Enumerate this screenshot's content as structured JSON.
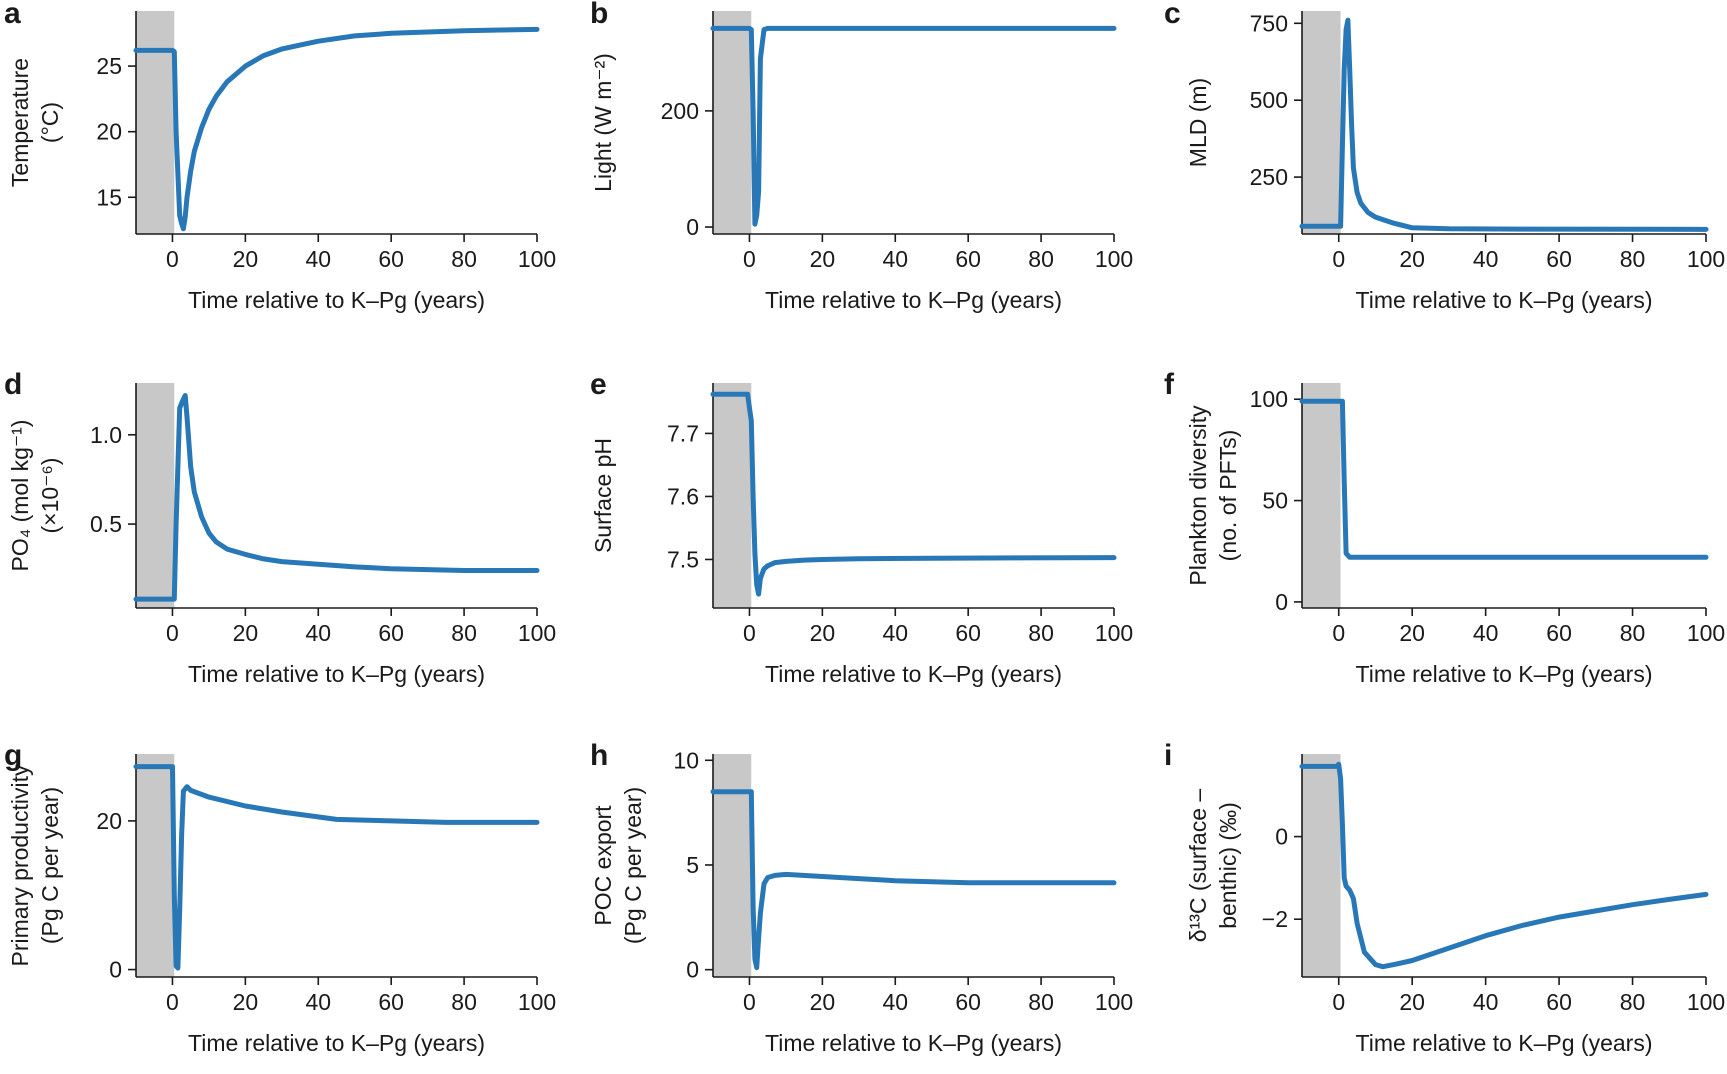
{
  "chart_data": [
    {
      "panel": "a",
      "type": "line",
      "xlabel": "Time relative to K–Pg (years)",
      "ylabel_lines": [
        "Temperature",
        "(°C)"
      ],
      "xlim": [
        -10,
        100
      ],
      "ylim": [
        12.2,
        29.2
      ],
      "xticks": [
        0,
        20,
        40,
        60,
        80,
        100
      ],
      "yticks": [
        15,
        20,
        25
      ],
      "shaded_x": [
        -10,
        0.5
      ],
      "series": [
        {
          "x": [
            -10,
            0,
            0.5,
            1,
            2,
            2.5,
            3,
            3.5,
            4,
            5,
            6,
            8,
            10,
            12,
            15,
            20,
            25,
            30,
            35,
            40,
            50,
            60,
            70,
            80,
            90,
            100
          ],
          "y": [
            26.2,
            26.2,
            26.1,
            20,
            13.6,
            13.0,
            12.6,
            13.5,
            15.0,
            17.0,
            18.5,
            20.3,
            21.7,
            22.7,
            23.8,
            25.0,
            25.8,
            26.3,
            26.6,
            26.9,
            27.3,
            27.5,
            27.6,
            27.7,
            27.75,
            27.8
          ]
        }
      ]
    },
    {
      "panel": "b",
      "type": "line",
      "xlabel": "Time relative to K–Pg (years)",
      "ylabel_lines": [
        "Light (W m⁻²)"
      ],
      "xlim": [
        -10,
        100
      ],
      "ylim": [
        -12,
        372
      ],
      "xticks": [
        0,
        20,
        40,
        60,
        80,
        100
      ],
      "yticks": [
        0,
        200
      ],
      "shaded_x": [
        -10,
        0.5
      ],
      "series": [
        {
          "x": [
            -10,
            0,
            0.5,
            1,
            1.5,
            2,
            2.5,
            3,
            4,
            5,
            100
          ],
          "y": [
            342,
            342,
            340,
            200,
            5,
            20,
            60,
            290,
            340,
            342,
            342
          ]
        }
      ]
    },
    {
      "panel": "c",
      "type": "line",
      "xlabel": "Time relative to K–Pg (years)",
      "ylabel_lines": [
        "MLD (m)"
      ],
      "xlim": [
        -10,
        100
      ],
      "ylim": [
        65,
        790
      ],
      "xticks": [
        0,
        20,
        40,
        60,
        80,
        100
      ],
      "yticks": [
        250,
        500,
        750
      ],
      "shaded_x": [
        -10,
        0.5
      ],
      "series": [
        {
          "x": [
            -10,
            0,
            0.5,
            1,
            1.5,
            2,
            2.5,
            3,
            3.5,
            4,
            5,
            6,
            8,
            10,
            15,
            20,
            30,
            50,
            100
          ],
          "y": [
            90,
            90,
            90,
            350,
            600,
            730,
            760,
            600,
            420,
            280,
            200,
            165,
            135,
            120,
            100,
            85,
            82,
            81,
            80
          ]
        }
      ]
    },
    {
      "panel": "d",
      "type": "line",
      "xlabel": "Time relative to K–Pg (years)",
      "ylabel_lines": [
        "PO₄ (mol kg⁻¹)",
        "(×10⁻⁶)"
      ],
      "xlim": [
        -10,
        100
      ],
      "ylim": [
        0.03,
        1.29
      ],
      "xticks": [
        0,
        20,
        40,
        60,
        80,
        100
      ],
      "yticks": [
        0.5,
        1.0
      ],
      "ytick_labels": [
        "0.5",
        "1.0"
      ],
      "shaded_x": [
        -10,
        0.5
      ],
      "series": [
        {
          "x": [
            -10,
            0,
            0.5,
            1,
            2,
            3,
            3.5,
            4,
            5,
            6,
            8,
            10,
            12,
            15,
            20,
            25,
            30,
            40,
            50,
            60,
            70,
            80,
            90,
            100
          ],
          "y": [
            0.08,
            0.08,
            0.08,
            0.5,
            1.15,
            1.2,
            1.22,
            1.1,
            0.82,
            0.68,
            0.54,
            0.45,
            0.4,
            0.36,
            0.33,
            0.305,
            0.29,
            0.275,
            0.26,
            0.25,
            0.245,
            0.24,
            0.24,
            0.24
          ]
        }
      ]
    },
    {
      "panel": "e",
      "type": "line",
      "xlabel": "Time relative to K–Pg (years)",
      "ylabel_lines": [
        "Surface pH"
      ],
      "xlim": [
        -10,
        100
      ],
      "ylim": [
        7.423,
        7.78
      ],
      "xticks": [
        0,
        20,
        40,
        60,
        80,
        100
      ],
      "yticks": [
        7.5,
        7.6,
        7.7
      ],
      "ytick_labels": [
        "7.5",
        "7.6",
        "7.7"
      ],
      "shaded_x": [
        -10,
        0.5
      ],
      "series": [
        {
          "x": [
            -10,
            -0.5,
            0,
            0.5,
            1,
            1.5,
            2,
            2.5,
            3,
            4,
            5,
            7,
            10,
            15,
            20,
            30,
            50,
            100
          ],
          "y": [
            7.762,
            7.762,
            7.74,
            7.72,
            7.6,
            7.51,
            7.46,
            7.445,
            7.47,
            7.485,
            7.49,
            7.495,
            7.497,
            7.499,
            7.5,
            7.501,
            7.502,
            7.503
          ]
        }
      ]
    },
    {
      "panel": "f",
      "type": "line",
      "xlabel": "Time relative to K–Pg (years)",
      "ylabel_lines": [
        "Plankton diversity",
        "(no. of PFTs)"
      ],
      "xlim": [
        -10,
        100
      ],
      "ylim": [
        -3,
        108
      ],
      "xticks": [
        0,
        20,
        40,
        60,
        80,
        100
      ],
      "yticks": [
        0,
        50,
        100
      ],
      "shaded_x": [
        -10,
        0.5
      ],
      "series": [
        {
          "x": [
            -10,
            1,
            1.5,
            2,
            2.5,
            3,
            100
          ],
          "y": [
            99,
            99,
            60,
            24,
            23,
            22,
            22
          ]
        }
      ]
    },
    {
      "panel": "g",
      "type": "line",
      "xlabel": "Time relative to K–Pg (years)",
      "ylabel_lines": [
        "Primary productivity",
        "(Pg C per year)"
      ],
      "xlim": [
        -10,
        100
      ],
      "ylim": [
        -1,
        29
      ],
      "xticks": [
        0,
        20,
        40,
        60,
        80,
        100
      ],
      "yticks": [
        0,
        20
      ],
      "shaded_x": [
        -10,
        0.5
      ],
      "series": [
        {
          "x": [
            -10,
            0,
            0.5,
            1,
            1.5,
            2,
            2.5,
            3,
            4,
            5,
            10,
            20,
            30,
            45,
            60,
            75,
            100
          ],
          "y": [
            27.3,
            27.3,
            10,
            0.5,
            0.2,
            8,
            18,
            24.0,
            24.6,
            24.1,
            23.2,
            22.0,
            21.2,
            20.2,
            20.0,
            19.8,
            19.8
          ]
        }
      ]
    },
    {
      "panel": "h",
      "type": "line",
      "xlabel": "Time relative to K–Pg (years)",
      "ylabel_lines": [
        "POC export",
        "(Pg C per year)"
      ],
      "xlim": [
        -10,
        100
      ],
      "ylim": [
        -0.35,
        10.3
      ],
      "xticks": [
        0,
        20,
        40,
        60,
        80,
        100
      ],
      "yticks": [
        0,
        5,
        10
      ],
      "shaded_x": [
        -10,
        0.5
      ],
      "series": [
        {
          "x": [
            -10,
            0,
            0.5,
            1,
            1.5,
            2,
            2.5,
            3,
            4,
            5,
            7,
            10,
            20,
            30,
            40,
            60,
            100
          ],
          "y": [
            8.5,
            8.5,
            8.5,
            3,
            0.5,
            0.1,
            1.5,
            2.7,
            4.1,
            4.4,
            4.5,
            4.55,
            4.45,
            4.35,
            4.25,
            4.15,
            4.15
          ]
        }
      ]
    },
    {
      "panel": "i",
      "type": "line",
      "xlabel": "Time relative to K–Pg (years)",
      "ylabel_lines": [
        "δ¹³C (surface –",
        "benthic) (‰)"
      ],
      "xlim": [
        -10,
        100
      ],
      "ylim": [
        -3.4,
        2.0
      ],
      "xticks": [
        0,
        20,
        40,
        60,
        80,
        100
      ],
      "yticks": [
        -2,
        0
      ],
      "ytick_labels": [
        "−2",
        "0"
      ],
      "shaded_x": [
        -10,
        0.5
      ],
      "series": [
        {
          "x": [
            -10,
            -0.5,
            0,
            0.5,
            1,
            1.5,
            2,
            3,
            4,
            5,
            7,
            10,
            12,
            15,
            20,
            30,
            40,
            50,
            60,
            70,
            80,
            90,
            100
          ],
          "y": [
            1.7,
            1.7,
            1.75,
            1.4,
            0.3,
            -1.0,
            -1.2,
            -1.3,
            -1.5,
            -2.1,
            -2.8,
            -3.1,
            -3.15,
            -3.1,
            -3.0,
            -2.7,
            -2.4,
            -2.15,
            -1.95,
            -1.8,
            -1.65,
            -1.52,
            -1.4
          ]
        }
      ]
    }
  ]
}
